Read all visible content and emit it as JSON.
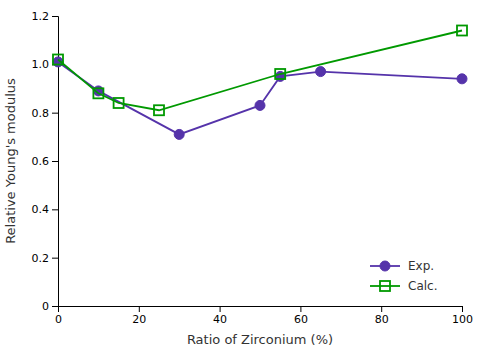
{
  "chart_data": {
    "type": "line",
    "xlabel": "Ratio of Zirconium (%)",
    "ylabel": "Relative Young's modulus",
    "xlim": [
      0,
      100
    ],
    "ylim": [
      0,
      1.2
    ],
    "xticks": [
      0,
      20,
      40,
      60,
      80,
      100
    ],
    "yticks": [
      0,
      0.2,
      0.4,
      0.6,
      0.8,
      {
        "value": 1.0,
        "label": "1.0"
      },
      1.2
    ],
    "grid": false,
    "legend": "lower right",
    "series": [
      {
        "name": "Exp.",
        "color": "#5533aa",
        "marker": "circle",
        "x": [
          0,
          10,
          30,
          50,
          55,
          65,
          100
        ],
        "values": [
          1.01,
          0.89,
          0.71,
          0.83,
          0.95,
          0.97,
          0.94
        ]
      },
      {
        "name": "Calc.",
        "color": "#009900",
        "marker": "open-square",
        "x": [
          0,
          10,
          15,
          25,
          55,
          100
        ],
        "values": [
          1.02,
          0.88,
          0.84,
          0.81,
          0.96,
          1.14
        ]
      }
    ]
  }
}
